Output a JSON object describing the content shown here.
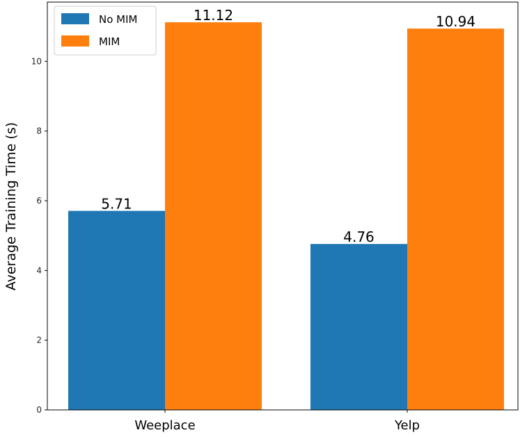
{
  "chart_data": {
    "type": "bar",
    "categories": [
      "Weeplace",
      "Yelp"
    ],
    "series": [
      {
        "name": "No MIM",
        "values": [
          5.71,
          4.76
        ],
        "color": "#1f77b4"
      },
      {
        "name": "MIM",
        "values": [
          11.12,
          10.94
        ],
        "color": "#ff7f0e"
      }
    ],
    "data_labels": [
      [
        "5.71",
        "4.76"
      ],
      [
        "11.12",
        "10.94"
      ]
    ],
    "title": "",
    "xlabel": "",
    "ylabel": "Average Training Time (s)",
    "ylim": [
      0,
      11.7
    ],
    "yticks": [
      "0",
      "2",
      "4",
      "6",
      "8",
      "10"
    ],
    "grid": false,
    "legend": {
      "position": "top-left",
      "entries": [
        "No MIM",
        "MIM"
      ]
    }
  }
}
